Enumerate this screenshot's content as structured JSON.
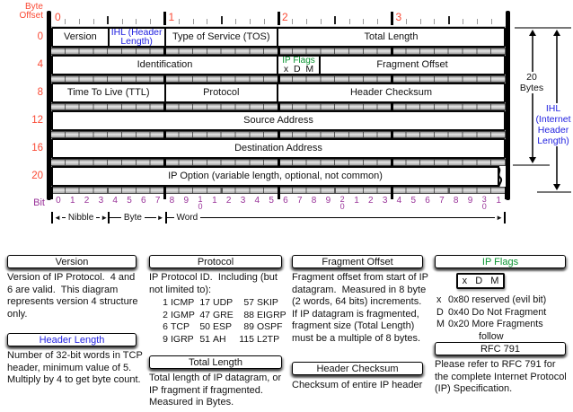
{
  "colors": {
    "red": "#fa4a35",
    "blue": "#2222e0",
    "green": "#0a9431",
    "purple": "#993399",
    "black": "#111111"
  },
  "header_diagram": {
    "byte_offset_label": "Byte Offset",
    "bit_label": "Bit",
    "top_byte_numbers": [
      "0",
      "1",
      "2",
      "3"
    ],
    "rows": [
      {
        "offset": "0",
        "cells": [
          {
            "label": "Version",
            "bits": 4
          },
          {
            "label": "IHL (Header Length)",
            "bits": 4,
            "color": "blue"
          },
          {
            "label": "Type of Service (TOS)",
            "bits": 8
          },
          {
            "label": "Total Length",
            "bits": 16
          }
        ]
      },
      {
        "offset": "4",
        "cells": [
          {
            "label": "Identification",
            "bits": 16
          },
          {
            "label": "IP Flags",
            "bits": 3,
            "color": "green",
            "letters": [
              "x",
              "D",
              "M"
            ]
          },
          {
            "label": "Fragment Offset",
            "bits": 13
          }
        ]
      },
      {
        "offset": "8",
        "cells": [
          {
            "label": "Time To Live (TTL)",
            "bits": 8
          },
          {
            "label": "Protocol",
            "bits": 8
          },
          {
            "label": "Header Checksum",
            "bits": 16
          }
        ]
      },
      {
        "offset": "12",
        "cells": [
          {
            "label": "Source Address",
            "bits": 32
          }
        ]
      },
      {
        "offset": "16",
        "cells": [
          {
            "label": "Destination Address",
            "bits": 32
          }
        ]
      },
      {
        "offset": "20",
        "torn": true,
        "cells": [
          {
            "label": "IP Option (variable length, optional, not common)",
            "bits": 32
          }
        ]
      }
    ],
    "bit_numbers": [
      "0",
      "1",
      "2",
      "3",
      "4",
      "5",
      "6",
      "7",
      "8",
      "9",
      "10",
      "1",
      "2",
      "3",
      "4",
      "5",
      "6",
      "7",
      "8",
      "9",
      "20",
      "1",
      "2",
      "3",
      "4",
      "5",
      "6",
      "7",
      "8",
      "9",
      "30",
      "1"
    ],
    "scale_labels": {
      "nibble": "Nibble",
      "byte": "Byte",
      "word": "Word"
    },
    "right_annotations": {
      "bytes_label": "20 Bytes",
      "ihl_lines": [
        "IHL",
        "(Internet",
        "Header",
        "Length)"
      ]
    }
  },
  "notes": {
    "version": {
      "title": "Version",
      "body": "Version of IP Protocol.  4 and 6 are valid.  This diagram represents version 4 structure only."
    },
    "header_length": {
      "title": "Header Length",
      "body": "Number of 32-bit words in TCP header, minimum value of 5.  Multiply by 4 to get byte count."
    },
    "protocol": {
      "title": "Protocol",
      "intro": "IP Protocol ID.  Including (but not limited to):",
      "entries": [
        [
          "1",
          "ICMP"
        ],
        [
          "17",
          "UDP"
        ],
        [
          "57",
          "SKIP"
        ],
        [
          "2",
          "IGMP"
        ],
        [
          "47",
          "GRE"
        ],
        [
          "88",
          "EIGRP"
        ],
        [
          "6",
          "TCP"
        ],
        [
          "50",
          "ESP"
        ],
        [
          "89",
          "OSPF"
        ],
        [
          "9",
          "IGRP"
        ],
        [
          "51",
          "AH"
        ],
        [
          "115",
          "L2TP"
        ]
      ]
    },
    "total_length": {
      "title": "Total Length",
      "body": "Total length of IP datagram, or IP fragment if fragmented.  Measured in Bytes."
    },
    "fragment_offset": {
      "title": "Fragment Offset",
      "body": "Fragment offset from start of IP datagram.  Measured in 8 byte (2 words, 64 bits) increments.  If IP datagram is fragmented, fragment size (Total Length) must be a multiple of 8 bytes."
    },
    "header_checksum": {
      "title": "Header Checksum",
      "body": "Checksum of entire IP header"
    },
    "ip_flags": {
      "title": "IP Flags",
      "letters": [
        "x",
        "D",
        "M"
      ],
      "lines": [
        [
          "x",
          "0x80 reserved (evil bit)"
        ],
        [
          "D",
          "0x40 Do Not Fragment"
        ],
        [
          "M",
          "0x20 More Fragments"
        ]
      ],
      "follow": "follow"
    },
    "rfc": {
      "title": "RFC 791",
      "body": "Please refer to RFC 791 for the complete Internet Protocol (IP) Specification."
    }
  }
}
